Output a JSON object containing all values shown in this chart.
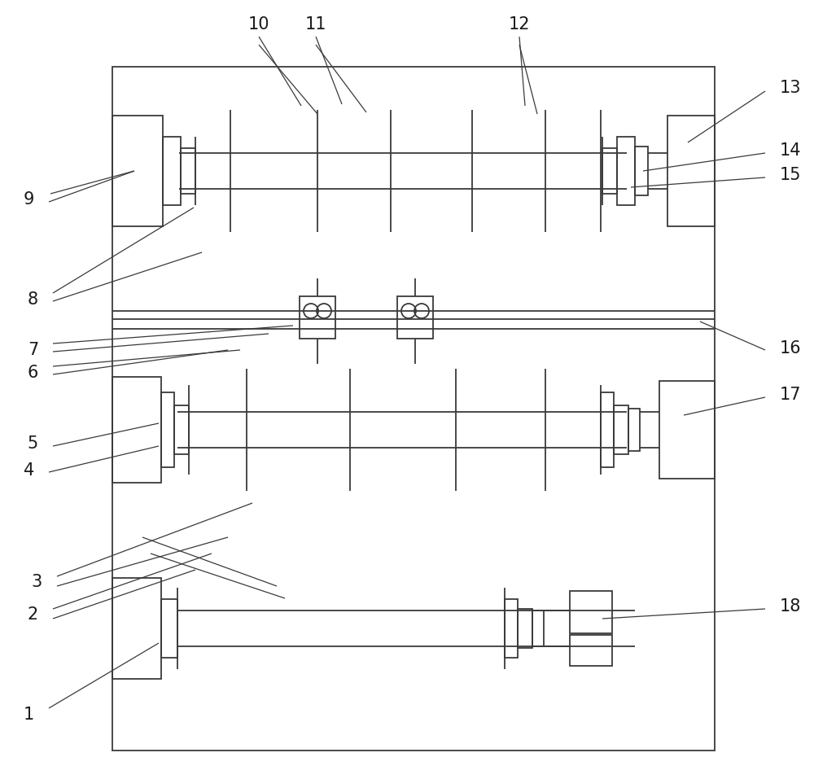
{
  "fig_width": 10.0,
  "fig_height": 9.57,
  "dpi": 100,
  "bg_color": "#ffffff",
  "lc": "#3a3a3a",
  "lw": 1.3
}
